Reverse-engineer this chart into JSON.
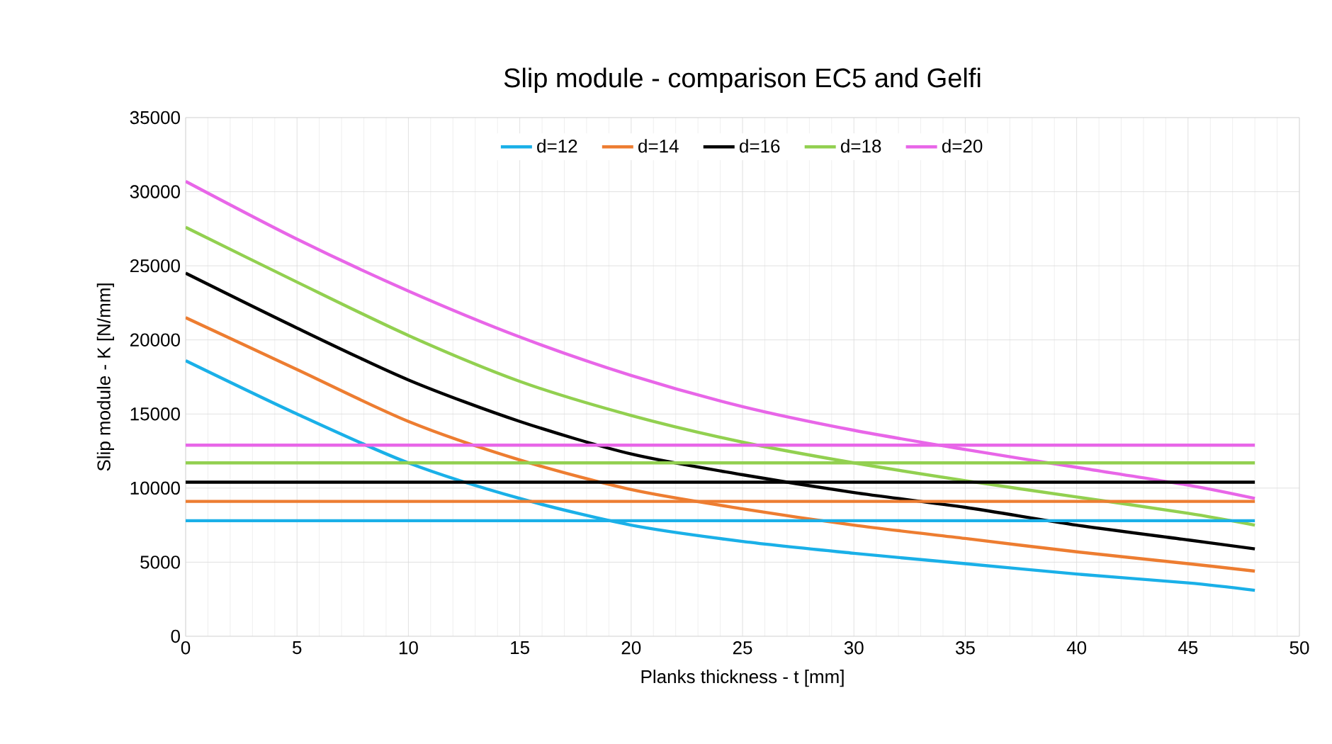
{
  "chart_data": {
    "type": "line",
    "title": "Slip module - comparison EC5 and Gelfi",
    "xlabel": "Planks thickness - t [mm]",
    "ylabel": "Slip module - K [N/mm]",
    "xlim": [
      0,
      50
    ],
    "ylim": [
      0,
      35000
    ],
    "xticks": [
      0,
      5,
      10,
      15,
      20,
      25,
      30,
      35,
      40,
      45,
      50
    ],
    "yticks": [
      0,
      5000,
      10000,
      15000,
      20000,
      25000,
      30000,
      35000
    ],
    "grid": true,
    "legend": "top",
    "series": [
      {
        "name": "d=12",
        "color": "#1ab0e8",
        "x": [
          0,
          5,
          10,
          15,
          20,
          25,
          30,
          35,
          40,
          45,
          48
        ],
        "values": [
          18600,
          15000,
          11700,
          9300,
          7500,
          6400,
          5600,
          4900,
          4200,
          3600,
          3100
        ]
      },
      {
        "name": "d=14",
        "color": "#ed7d31",
        "x": [
          0,
          5,
          10,
          15,
          20,
          25,
          30,
          35,
          40,
          45,
          48
        ],
        "values": [
          21500,
          18000,
          14500,
          11900,
          9900,
          8600,
          7500,
          6600,
          5700,
          4900,
          4400
        ]
      },
      {
        "name": "d=16",
        "color": "#000000",
        "x": [
          0,
          5,
          10,
          15,
          20,
          25,
          30,
          35,
          40,
          45,
          48
        ],
        "values": [
          24500,
          20800,
          17300,
          14500,
          12300,
          10900,
          9700,
          8700,
          7500,
          6500,
          5900
        ]
      },
      {
        "name": "d=18",
        "color": "#92d050",
        "x": [
          0,
          5,
          10,
          15,
          20,
          25,
          30,
          35,
          40,
          45,
          48
        ],
        "values": [
          27600,
          23900,
          20300,
          17200,
          14900,
          13100,
          11700,
          10500,
          9400,
          8300,
          7500
        ]
      },
      {
        "name": "d=20",
        "color": "#e866e8",
        "x": [
          0,
          5,
          10,
          15,
          20,
          25,
          30,
          35,
          40,
          45,
          48
        ],
        "values": [
          30700,
          26800,
          23300,
          20200,
          17600,
          15500,
          13900,
          12600,
          11400,
          10200,
          9300
        ]
      },
      {
        "color": "#1ab0e8",
        "x": [
          0,
          48
        ],
        "values": [
          7800,
          7800
        ]
      },
      {
        "color": "#ed7d31",
        "x": [
          0,
          48
        ],
        "values": [
          9100,
          9100
        ]
      },
      {
        "color": "#000000",
        "x": [
          0,
          48
        ],
        "values": [
          10400,
          10400
        ]
      },
      {
        "color": "#92d050",
        "x": [
          0,
          48
        ],
        "values": [
          11700,
          11700
        ]
      },
      {
        "color": "#e866e8",
        "x": [
          0,
          48
        ],
        "values": [
          12900,
          12900
        ]
      }
    ]
  }
}
